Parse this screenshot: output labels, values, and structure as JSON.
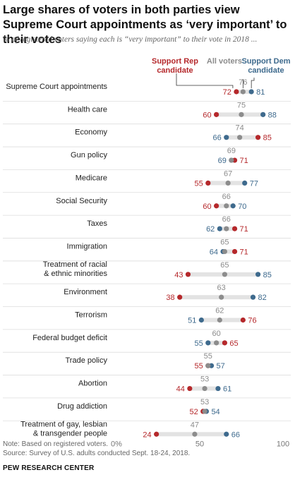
{
  "title": "Large shares of voters in both parties view Supreme Court appointments as ‘very important’ to their votes",
  "subtitle": "% of registered voters saying each is “very important” to their vote in 2018 ...",
  "legend": {
    "rep": "Support Rep candidate",
    "all": "All voters",
    "dem": "Support Dem candidate"
  },
  "colors": {
    "rep": "#b5282b",
    "all": "#8c8c8c",
    "dem": "#3e6a8d",
    "bar": "#e3e3e3",
    "divider": "#dddddd"
  },
  "note": "Note: Based on registered voters.",
  "source": "Source: Survey of U.S. adults conducted Sept. 18-24, 2018.",
  "organization": "PEW RESEARCH CENTER",
  "chart_data": {
    "type": "dot",
    "xlim": [
      0,
      100
    ],
    "xticks": [
      0,
      50,
      100
    ],
    "xtick_labels": [
      "0%",
      "50",
      "100"
    ],
    "grid": false,
    "legend_position": "top",
    "categories": [
      "Supreme Court appointments",
      "Health care",
      "Economy",
      "Gun policy",
      "Medicare",
      "Social Security",
      "Taxes",
      "Immigration",
      "Treatment of racial & ethnic minorities",
      "Environment",
      "Terrorism",
      "Federal budget deficit",
      "Trade policy",
      "Abortion",
      "Drug addiction",
      "Treatment of gay, lesbian & transgender people"
    ],
    "category_lines": [
      [
        "Supreme Court appointments"
      ],
      [
        "Health care"
      ],
      [
        "Economy"
      ],
      [
        "Gun policy"
      ],
      [
        "Medicare"
      ],
      [
        "Social Security"
      ],
      [
        "Taxes"
      ],
      [
        "Immigration"
      ],
      [
        "Treatment of racial",
        "& ethnic minorities"
      ],
      [
        "Environment"
      ],
      [
        "Terrorism"
      ],
      [
        "Federal budget deficit"
      ],
      [
        "Trade policy"
      ],
      [
        "Abortion"
      ],
      [
        "Drug addiction"
      ],
      [
        "Treatment of gay, lesbian",
        "& transgender people"
      ]
    ],
    "series": [
      {
        "name": "Support Rep candidate",
        "key": "rep",
        "values": [
          72,
          60,
          85,
          71,
          55,
          60,
          71,
          71,
          43,
          38,
          76,
          65,
          55,
          44,
          52,
          24
        ]
      },
      {
        "name": "All voters",
        "key": "all",
        "values": [
          76,
          75,
          74,
          69,
          67,
          66,
          66,
          65,
          65,
          63,
          62,
          60,
          55,
          53,
          53,
          47
        ]
      },
      {
        "name": "Support Dem candidate",
        "key": "dem",
        "values": [
          81,
          88,
          66,
          69,
          77,
          70,
          62,
          64,
          85,
          82,
          51,
          55,
          57,
          61,
          54,
          66
        ]
      }
    ]
  }
}
